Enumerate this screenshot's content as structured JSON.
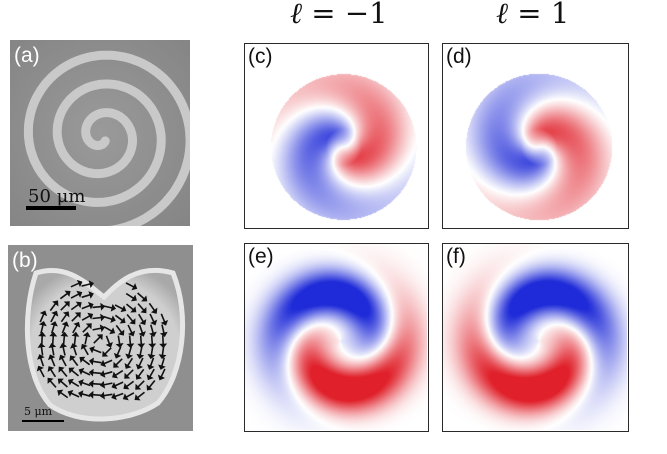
{
  "columns": {
    "left_header": {
      "symbol": "ℓ",
      "equals": " = ",
      "value": "−1"
    },
    "right_header": {
      "symbol": "ℓ",
      "equals": " = ",
      "value": "1"
    }
  },
  "panels": {
    "a": {
      "label": "(a)",
      "scale_bar": "50 μm"
    },
    "b": {
      "label": "(b)",
      "scale_bar": "5 μm"
    },
    "c": {
      "label": "(c)"
    },
    "d": {
      "label": "(d)"
    },
    "e": {
      "label": "(e)"
    },
    "f": {
      "label": "(f)"
    }
  },
  "colors": {
    "positive": "#e0202a",
    "negative": "#1f2bd8",
    "frame": "#2a2a2a"
  }
}
